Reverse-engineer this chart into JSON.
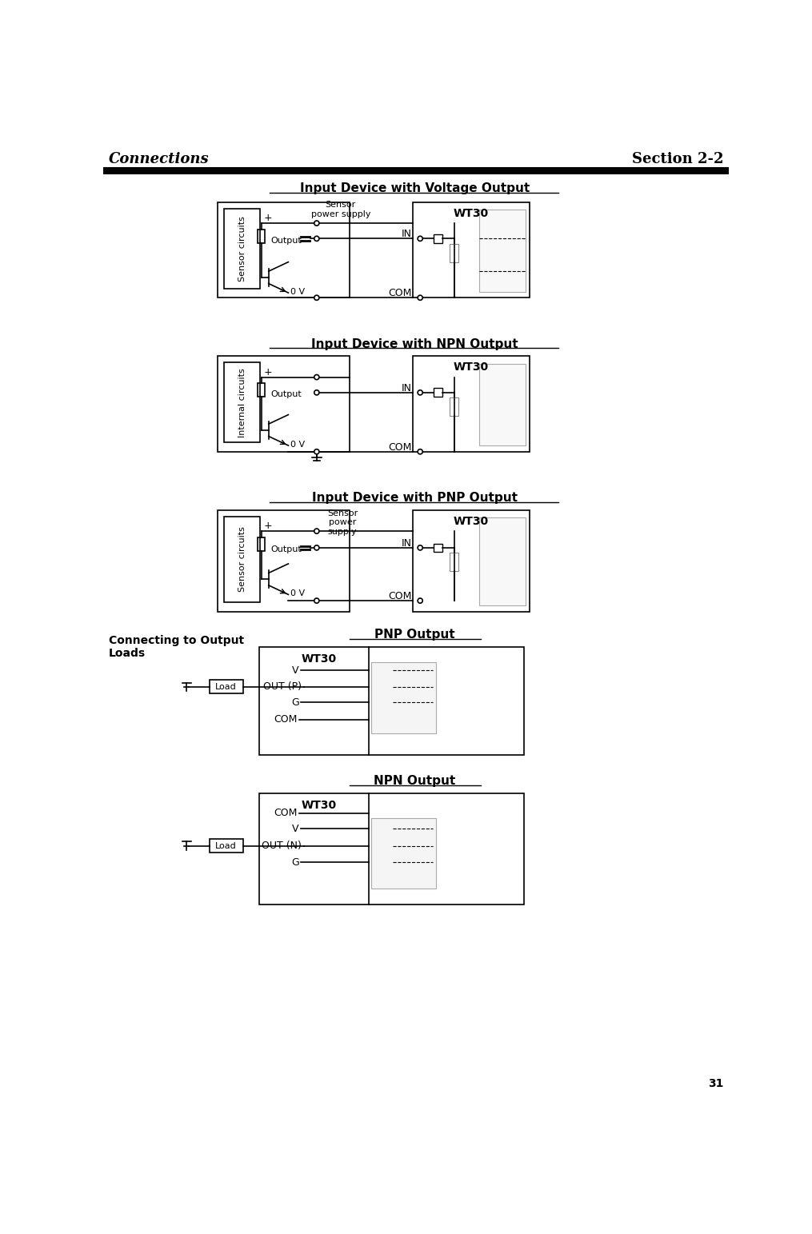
{
  "page_title_left": "Connections",
  "page_title_right": "Section 2-2",
  "page_number": "31",
  "background_color": "#ffffff",
  "line_color": "#000000",
  "section1_title": "Input Device with Voltage Output",
  "section2_title": "Input Device with NPN Output",
  "section3_title": "Input Device with PNP Output",
  "section4_left": "Connecting to Output\nLoads",
  "section4_title": "PNP Output",
  "section5_title": "NPN Output",
  "wt30_label": "WT30",
  "in_label": "IN",
  "com_label": "COM",
  "output_label": "Output",
  "zero_v_label": "0 V",
  "plus_label": "+",
  "sensor_circuits_label": "Sensor circuits",
  "internal_circuits_label": "Internal circuits",
  "sensor_power_label": "Sensor\npower supply",
  "sensor_power_label3": "Sensor\npower\nsupply",
  "v_label": "V",
  "g_label": "G",
  "out_p_label": "OUT (P)",
  "out_n_label": "OUT (N)",
  "load_label": "Load"
}
